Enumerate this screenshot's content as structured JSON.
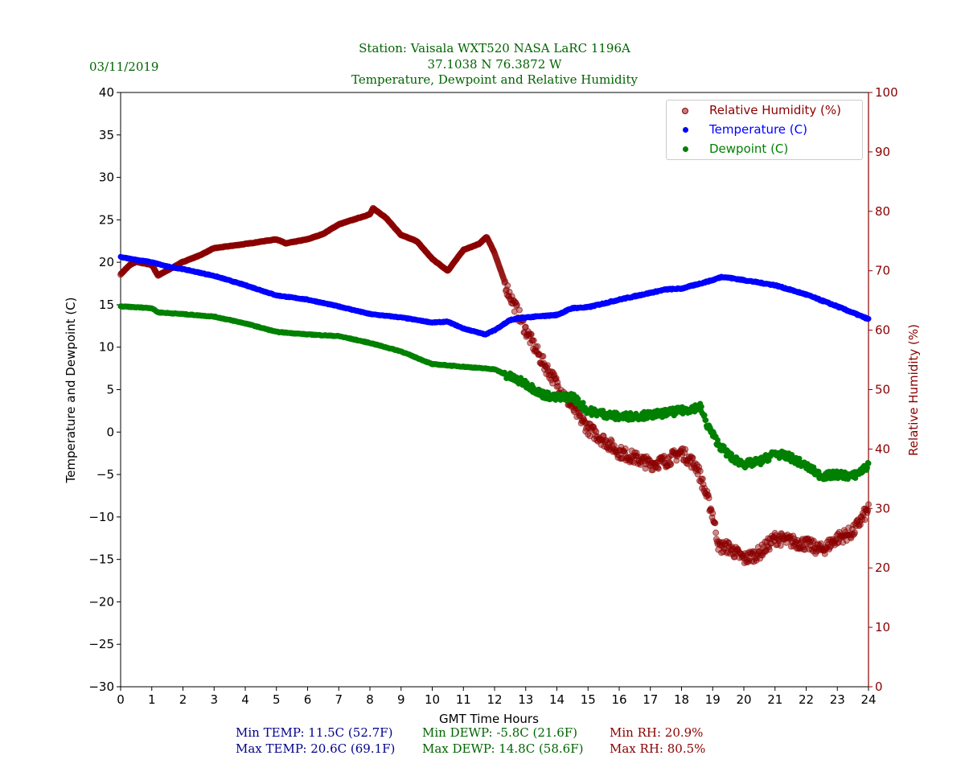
{
  "date": "03/11/2019",
  "title_lines": [
    "Station:  Vaisala WXT520  NASA LaRC 1196A",
    "37.1038 N 76.3872 W",
    "Temperature, Dewpoint and Relative Humidity"
  ],
  "stats": {
    "min_temp": "Min TEMP: 11.5C (52.7F)",
    "max_temp": "Max TEMP: 20.6C (69.1F)",
    "min_dewp": "Min DEWP: -5.8C (21.6F)",
    "max_dewp": "Max DEWP: 14.8C (58.6F)",
    "min_rh": "Min RH: 20.9%",
    "max_rh": "Max RH: 80.5%"
  },
  "colors": {
    "temp": "#0000ff",
    "dewp": "#008000",
    "rh": "#8b0000",
    "title": "#006400",
    "stat_temp": "#00008b"
  },
  "chart_data": {
    "type": "scatter",
    "xlabel": "GMT Time Hours",
    "ylabel": "Temperature and Dewpoint (C)",
    "y2label": "Relative Humidity (%)",
    "xlim": [
      0,
      24
    ],
    "ylim": [
      -30,
      40
    ],
    "y2lim": [
      0,
      100
    ],
    "xticks": [
      0,
      1,
      2,
      3,
      4,
      5,
      6,
      7,
      8,
      9,
      10,
      11,
      12,
      13,
      14,
      15,
      16,
      17,
      18,
      19,
      20,
      21,
      22,
      23,
      24
    ],
    "yticks": [
      -30,
      -25,
      -20,
      -15,
      -10,
      -5,
      0,
      5,
      10,
      15,
      20,
      25,
      30,
      35,
      40
    ],
    "y2ticks": [
      0,
      10,
      20,
      30,
      40,
      50,
      60,
      70,
      80,
      90,
      100
    ],
    "legend_position": "top-right",
    "series": [
      {
        "name": "Relative Humidity (%)",
        "axis": "right",
        "color": "#8b0000",
        "x": [
          0,
          0.3,
          0.5,
          1,
          1.2,
          2,
          2.5,
          3,
          4,
          5,
          5.3,
          6,
          6.5,
          7,
          8,
          8.1,
          8.5,
          9,
          9.5,
          10,
          10.5,
          11,
          11.5,
          11.75,
          12,
          12.4,
          13,
          13.5,
          14,
          14.5,
          15,
          15.5,
          16,
          17,
          17.5,
          18,
          18.5,
          19,
          19.2,
          19.5,
          20,
          20.5,
          21,
          21.5,
          22,
          22.5,
          23,
          23.5,
          24
        ],
        "y": [
          69.4,
          71,
          71.5,
          71,
          69.2,
          71.5,
          72.5,
          73.8,
          74.5,
          75.3,
          74.6,
          75.3,
          76.2,
          77.8,
          79.5,
          80.5,
          79,
          76,
          75,
          72,
          70,
          73.5,
          74.5,
          75.7,
          73,
          67,
          60,
          55,
          51,
          47,
          43.5,
          41.5,
          39.5,
          37.5,
          38,
          39.5,
          37,
          29,
          23.5,
          23.5,
          21.5,
          22.5,
          25,
          24.5,
          24,
          23,
          25,
          26,
          30
        ]
      },
      {
        "name": "Temperature (C)",
        "axis": "left",
        "color": "#0000ff",
        "x": [
          0,
          1,
          1.5,
          2,
          3,
          4,
          5,
          6,
          7,
          8,
          9,
          10,
          10.5,
          11,
          11.7,
          12,
          12.5,
          13,
          14,
          14.5,
          15,
          16,
          17,
          17.5,
          18,
          18.5,
          19,
          19.3,
          20,
          21,
          22,
          23,
          24
        ],
        "y": [
          20.6,
          20.0,
          19.5,
          19.2,
          18.4,
          17.3,
          16.1,
          15.6,
          14.8,
          13.9,
          13.5,
          12.9,
          13.0,
          12.2,
          11.5,
          12.0,
          13.2,
          13.5,
          13.8,
          14.6,
          14.7,
          15.6,
          16.4,
          16.8,
          16.9,
          17.4,
          17.9,
          18.3,
          17.9,
          17.3,
          16.2,
          14.8,
          13.3
        ]
      },
      {
        "name": "Dewpoint (C)",
        "axis": "left",
        "color": "#008000",
        "x": [
          0,
          1,
          1.2,
          2,
          3,
          4,
          5,
          6,
          7,
          8,
          9,
          10,
          11,
          12,
          12.5,
          13,
          13.5,
          14,
          14.5,
          15,
          16,
          17,
          18,
          18.6,
          18.8,
          19.2,
          19.6,
          20,
          20.5,
          21,
          21.5,
          22,
          22.5,
          23,
          23.5,
          24
        ],
        "y": [
          14.8,
          14.6,
          14.1,
          13.9,
          13.6,
          12.8,
          11.8,
          11.5,
          11.3,
          10.5,
          9.5,
          8.0,
          7.7,
          7.4,
          6.5,
          5.7,
          4.5,
          4.0,
          4.2,
          2.5,
          1.8,
          2.0,
          2.5,
          3.0,
          1.0,
          -1.5,
          -3.0,
          -3.8,
          -3.5,
          -2.5,
          -3.0,
          -4.0,
          -5.2,
          -5.0,
          -5.2,
          -4.0
        ]
      }
    ]
  }
}
